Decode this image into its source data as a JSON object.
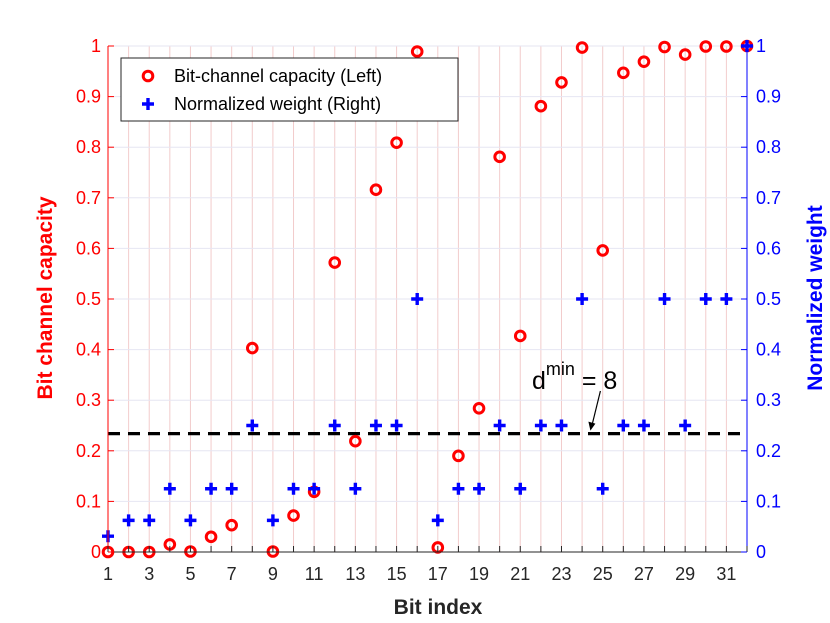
{
  "chart_data": {
    "type": "scatter",
    "xlabel": "Bit index",
    "ylabel_left": "Bit channel capacity",
    "ylabel_right": "Normalized weight",
    "xlim": [
      1,
      32
    ],
    "ylim_left": [
      0,
      1
    ],
    "ylim_right": [
      0,
      1
    ],
    "grid": true,
    "legend_position": "top-left",
    "x_ticks": [
      1,
      3,
      5,
      7,
      9,
      11,
      13,
      15,
      17,
      19,
      21,
      23,
      25,
      27,
      29,
      31
    ],
    "y_ticks_left": [
      "0",
      "0.1",
      "0.2",
      "0.3",
      "0.4",
      "0.5",
      "0.6",
      "0.7",
      "0.8",
      "0.9",
      "1"
    ],
    "y_ticks_right": [
      "0",
      "0.1",
      "0.2",
      "0.3",
      "0.4",
      "0.5",
      "0.6",
      "0.7",
      "0.8",
      "0.9",
      "1"
    ],
    "series": [
      {
        "name": "Bit-channel capacity (Left)",
        "axis": "left",
        "marker": "circle",
        "color": "#ff0000",
        "x": [
          1,
          2,
          3,
          4,
          5,
          6,
          7,
          8,
          9,
          10,
          11,
          12,
          13,
          14,
          15,
          16,
          17,
          18,
          19,
          20,
          21,
          22,
          23,
          24,
          25,
          26,
          27,
          28,
          29,
          30,
          31,
          32
        ],
        "values": [
          0,
          0,
          0,
          0.015,
          0.001,
          0.03,
          0.053,
          0.403,
          0.001,
          0.072,
          0.119,
          0.572,
          0.219,
          0.716,
          0.809,
          0.989,
          0.009,
          0.19,
          0.284,
          0.781,
          0.427,
          0.881,
          0.928,
          0.997,
          0.596,
          0.947,
          0.969,
          0.998,
          0.983,
          0.999,
          0.999,
          1.0
        ]
      },
      {
        "name": "Normalized weight (Right)",
        "axis": "right",
        "marker": "plus",
        "color": "#0000ff",
        "x": [
          1,
          2,
          3,
          4,
          5,
          6,
          7,
          8,
          9,
          10,
          11,
          12,
          13,
          14,
          15,
          16,
          17,
          18,
          19,
          20,
          21,
          22,
          23,
          24,
          25,
          26,
          27,
          28,
          29,
          30,
          31,
          32
        ],
        "values": [
          0.03125,
          0.0625,
          0.0625,
          0.125,
          0.0625,
          0.125,
          0.125,
          0.25,
          0.0625,
          0.125,
          0.125,
          0.25,
          0.125,
          0.25,
          0.25,
          0.5,
          0.0625,
          0.125,
          0.125,
          0.25,
          0.125,
          0.25,
          0.25,
          0.5,
          0.125,
          0.25,
          0.25,
          0.5,
          0.25,
          0.5,
          0.5,
          1.0
        ]
      }
    ],
    "threshold": {
      "value": 0.234,
      "axis": "left",
      "style": "dashed",
      "color": "#000000",
      "label_base": "d",
      "label_sup": "min",
      "label_rest": " = 8",
      "arrow_to_x": 24.5
    }
  }
}
